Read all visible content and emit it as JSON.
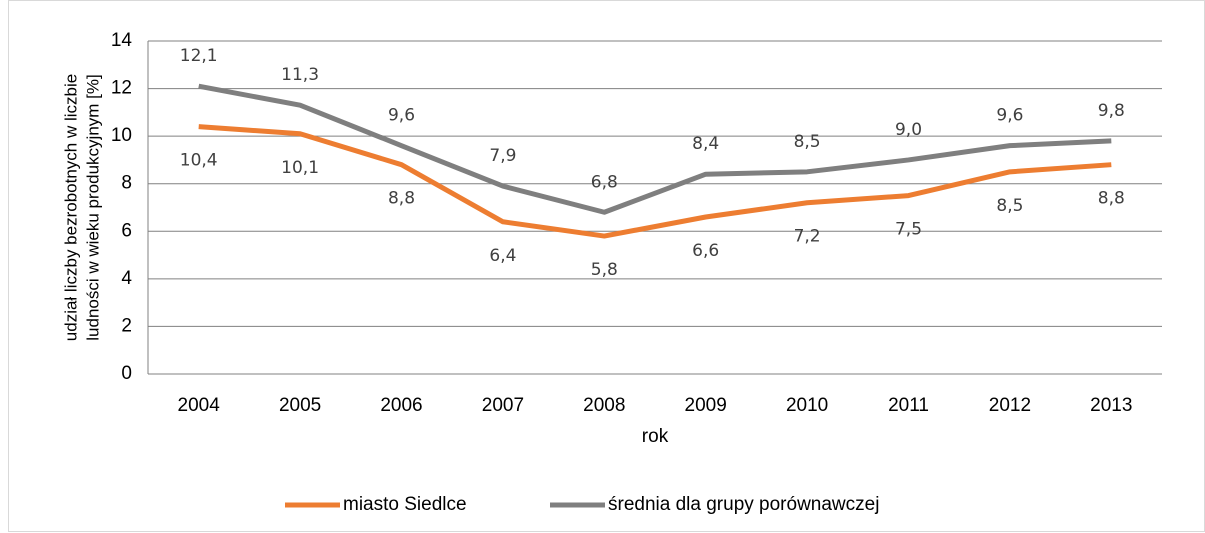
{
  "chart_data": {
    "type": "line",
    "ylabel": [
      "udział liczby bezrobotnych w liczbie",
      "ludności w wieku produkcyjnym [%]"
    ],
    "xlabel": "rok",
    "categories": [
      "2004",
      "2005",
      "2006",
      "2007",
      "2008",
      "2009",
      "2010",
      "2011",
      "2012",
      "2013"
    ],
    "series": [
      {
        "name": "miasto Siedlce",
        "color": "#ed7d31",
        "values": [
          10.4,
          10.1,
          8.8,
          6.4,
          5.8,
          6.6,
          7.2,
          7.5,
          8.5,
          8.8
        ],
        "value_labels": [
          "10,4",
          "10,1",
          "8,8",
          "6,4",
          "5,8",
          "6,6",
          "7,2",
          "7,5",
          "8,5",
          "8,8"
        ]
      },
      {
        "name": "średnia dla grupy porównawczej",
        "color": "#7f7f7f",
        "values": [
          12.1,
          11.3,
          9.6,
          7.9,
          6.8,
          8.4,
          8.5,
          9.0,
          9.6,
          9.8
        ],
        "value_labels": [
          "12,1",
          "11,3",
          "9,6",
          "7,9",
          "6,8",
          "8,4",
          "8,5",
          "9,0",
          "9,6",
          "9,8"
        ]
      }
    ],
    "ylim": [
      0,
      14
    ],
    "yticks": [
      0,
      2,
      4,
      6,
      8,
      10,
      12,
      14
    ],
    "grid": true,
    "legend": "bottom"
  }
}
